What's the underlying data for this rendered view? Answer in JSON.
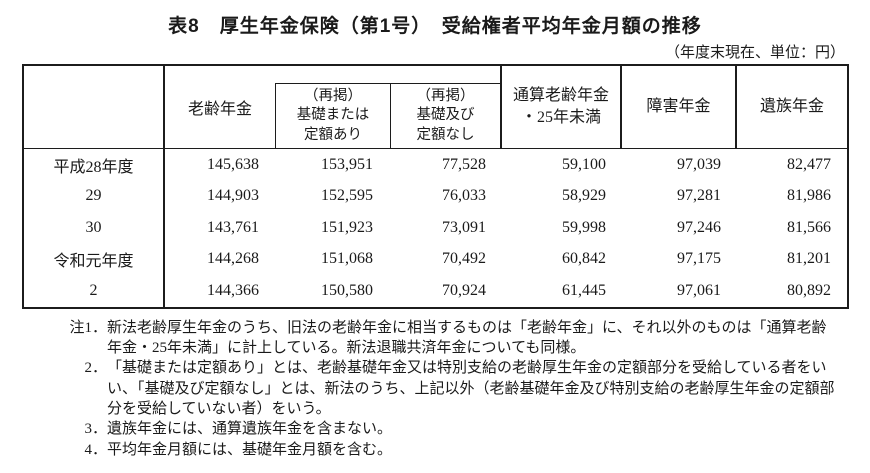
{
  "page": {
    "title": "表8　厚生年金保険（第1号）　受給権者平均年金月額の推移",
    "unit_note": "（年度末現在、単位：円）"
  },
  "colors": {
    "background": "#ffffff",
    "ink": "#1a1a1a",
    "border": "#1c1c1c"
  },
  "table": {
    "col_headers": {
      "rorei": "老齢年金",
      "saikei_ari": {
        "l1": "（再掲）",
        "l2": "基礎または",
        "l3": "定額あり"
      },
      "saikei_nashi": {
        "l1": "（再掲）",
        "l2": "基礎及び",
        "l3": "定額なし"
      },
      "tsusan": {
        "l1": "通算老齢年金",
        "l2": "・25年未満"
      },
      "shogai": "障害年金",
      "izoku": "遺族年金"
    },
    "rows": [
      {
        "year": "平成28年度",
        "values": [
          "145,638",
          "153,951",
          "77,528",
          "59,100",
          "97,039",
          "82,477"
        ]
      },
      {
        "year": "29",
        "values": [
          "144,903",
          "152,595",
          "76,033",
          "58,929",
          "97,281",
          "81,986"
        ]
      },
      {
        "year": "30",
        "values": [
          "143,761",
          "151,923",
          "73,091",
          "59,998",
          "97,246",
          "81,566"
        ]
      },
      {
        "year": "令和元年度",
        "values": [
          "144,268",
          "151,068",
          "70,492",
          "60,842",
          "97,175",
          "81,201"
        ]
      },
      {
        "year": "2",
        "values": [
          "144,366",
          "150,580",
          "70,924",
          "61,445",
          "97,061",
          "80,892"
        ]
      }
    ]
  },
  "notes": [
    {
      "prefix": "注1．",
      "text": "新法老齢厚生年金のうち、旧法の老齢年金に相当するものは「老齢年金」に、それ以外のものは「通算老齢年金・25年未満」に計上している。新法退職共済年金についても同様。"
    },
    {
      "prefix": "2．",
      "text": "「基礎または定額あり」とは、老齢基礎年金又は特別支給の老齢厚生年金の定額部分を受給している者をいい、「基礎及び定額なし」とは、新法のうち、上記以外（老齢基礎年金及び特別支給の老齢厚生年金の定額部分を受給していない者）をいう。"
    },
    {
      "prefix": "3．",
      "text": "遺族年金には、通算遺族年金を含まない。"
    },
    {
      "prefix": "4．",
      "text": "平均年金月額には、基礎年金月額を含む。"
    }
  ]
}
